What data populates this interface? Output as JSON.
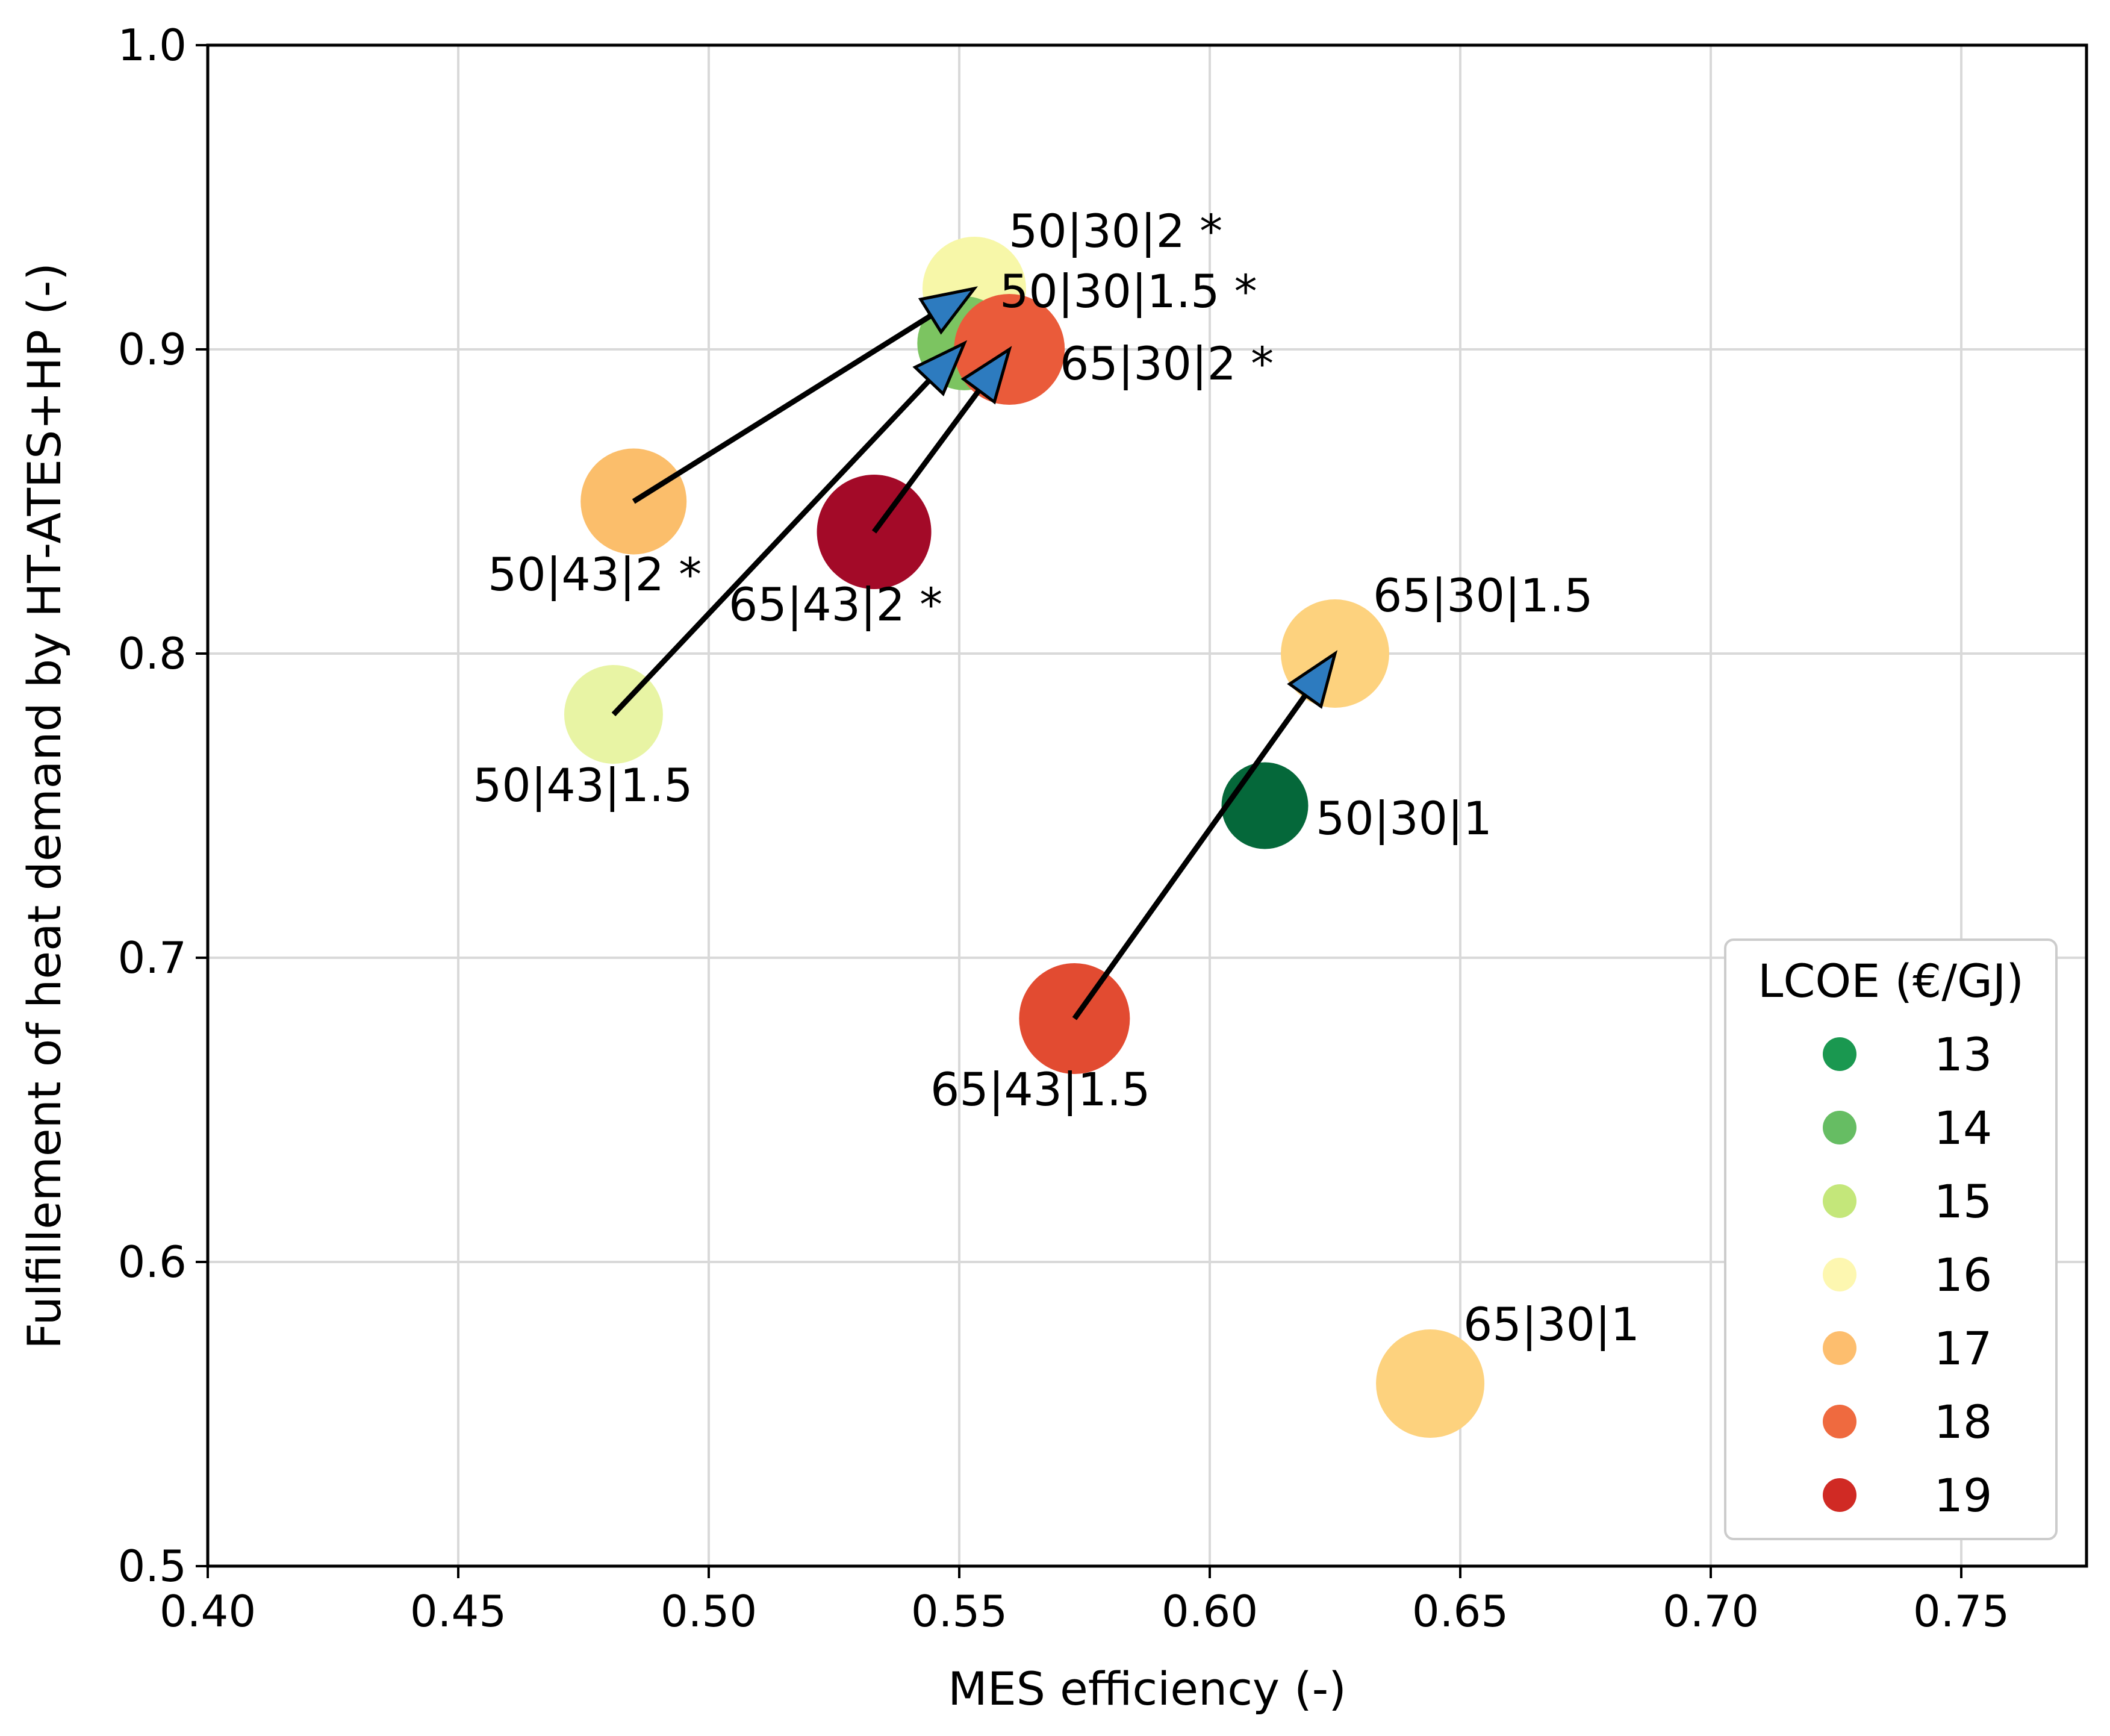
{
  "chart_data": {
    "type": "scatter",
    "xlabel": "MES efficiency (-)",
    "ylabel": "Fulfillement of heat demand by HT-ATES+HP (-)",
    "xlim": [
      0.4,
      0.775
    ],
    "ylim": [
      0.5,
      1.0
    ],
    "xticks": [
      "0.40",
      "0.45",
      "0.50",
      "0.55",
      "0.60",
      "0.65",
      "0.70",
      "0.75"
    ],
    "yticks": [
      "0.5",
      "0.6",
      "0.7",
      "0.8",
      "0.9",
      "1.0"
    ],
    "grid": true,
    "points": [
      {
        "label": "50|30|2 *",
        "x": 0.553,
        "y": 0.92,
        "lcoe": 16,
        "color": "#f7f7a8"
      },
      {
        "label": "50|30|1.5 *",
        "x": 0.551,
        "y": 0.902,
        "lcoe": 14,
        "color": "#7cc461"
      },
      {
        "label": "65|30|2 *",
        "x": 0.56,
        "y": 0.9,
        "lcoe": 18,
        "color": "#ea5b3a"
      },
      {
        "label": "50|43|2 *",
        "x": 0.485,
        "y": 0.85,
        "lcoe": 17,
        "color": "#fbbe6b"
      },
      {
        "label": "65|43|2 *",
        "x": 0.533,
        "y": 0.84,
        "lcoe": 19,
        "color": "#a30a28"
      },
      {
        "label": "50|43|1.5",
        "x": 0.481,
        "y": 0.78,
        "lcoe": 15,
        "color": "#e8f4a4"
      },
      {
        "label": "65|30|1.5",
        "x": 0.625,
        "y": 0.8,
        "lcoe": 16.5,
        "color": "#fdd27e"
      },
      {
        "label": "50|30|1",
        "x": 0.611,
        "y": 0.75,
        "lcoe": 13,
        "color": "#05683a"
      },
      {
        "label": "65|43|1.5",
        "x": 0.573,
        "y": 0.68,
        "lcoe": 18,
        "color": "#e24b31"
      },
      {
        "label": "65|30|1",
        "x": 0.644,
        "y": 0.56,
        "lcoe": 16.5,
        "color": "#fdd27e"
      }
    ],
    "arrows": [
      {
        "from": [
          0.485,
          0.85
        ],
        "to": [
          0.553,
          0.92
        ]
      },
      {
        "from": [
          0.481,
          0.78
        ],
        "to": [
          0.551,
          0.902
        ]
      },
      {
        "from": [
          0.533,
          0.84
        ],
        "to": [
          0.56,
          0.9
        ]
      },
      {
        "from": [
          0.573,
          0.68
        ],
        "to": [
          0.625,
          0.8
        ]
      }
    ],
    "arrow_head_color": "#2d7bbf",
    "legend": {
      "title": "LCOE (€/GJ)",
      "placement": "lower-right",
      "entries": [
        {
          "label": "13",
          "color": "#1a9850"
        },
        {
          "label": "14",
          "color": "#66bd63"
        },
        {
          "label": "15",
          "color": "#c4e77a"
        },
        {
          "label": "16",
          "color": "#fdf7b0"
        },
        {
          "label": "17",
          "color": "#fdbe6e"
        },
        {
          "label": "18",
          "color": "#ef6a3f"
        },
        {
          "label": "19",
          "color": "#d02a24"
        }
      ]
    }
  }
}
